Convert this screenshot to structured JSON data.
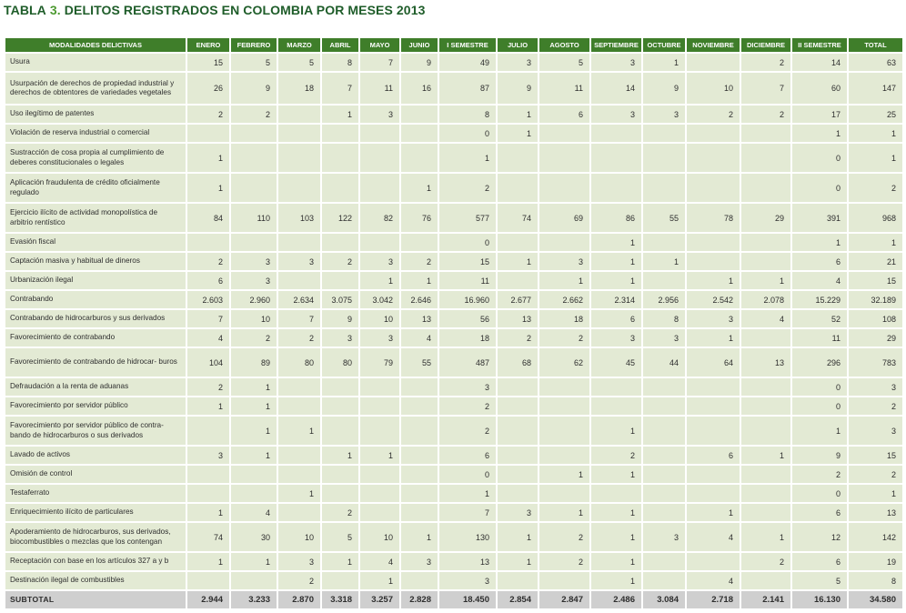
{
  "title": {
    "lead": "TABLA",
    "number": "3.",
    "text": "DELITOS REGISTRADOS EN COLOMBIA POR MESES 2013"
  },
  "columns": [
    "MODALIDADES DELICTIVAS",
    "ENERO",
    "FEBRERO",
    "MARZO",
    "ABRIL",
    "MAYO",
    "JUNIO",
    "I SEMESTRE",
    "JULIO",
    "AGOSTO",
    "SEPTIEMBRE",
    "OCTUBRE",
    "NOVIEMBRE",
    "DICIEMBRE",
    "II SEMESTRE",
    "TOTAL"
  ],
  "rows": [
    {
      "label": "Usura",
      "values": [
        "15",
        "5",
        "5",
        "8",
        "7",
        "9",
        "49",
        "3",
        "5",
        "3",
        "1",
        "",
        "2",
        "14",
        "63"
      ]
    },
    {
      "label": "Usurpación de derechos de propiedad industrial y derechos de obtentores de variedades vegetales",
      "size": "xtall",
      "values": [
        "26",
        "9",
        "18",
        "7",
        "11",
        "16",
        "87",
        "9",
        "11",
        "14",
        "9",
        "10",
        "7",
        "60",
        "147"
      ]
    },
    {
      "label": "Uso ilegítimo de patentes",
      "values": [
        "2",
        "2",
        "",
        "1",
        "3",
        "",
        "8",
        "1",
        "6",
        "3",
        "3",
        "2",
        "2",
        "17",
        "25"
      ]
    },
    {
      "label": "Violación de reserva industrial o comercial",
      "values": [
        "",
        "",
        "",
        "",
        "",
        "",
        "0",
        "1",
        "",
        "",
        "",
        "",
        "",
        "1",
        "1"
      ]
    },
    {
      "label": "Sustracción de cosa propia al cumplimiento de deberes constitucionales o legales",
      "size": "tall",
      "values": [
        "1",
        "",
        "",
        "",
        "",
        "",
        "1",
        "",
        "",
        "",
        "",
        "",
        "",
        "0",
        "1"
      ]
    },
    {
      "label": "Aplicación fraudulenta de crédito oficialmente regulado",
      "size": "tall",
      "values": [
        "1",
        "",
        "",
        "",
        "",
        "1",
        "2",
        "",
        "",
        "",
        "",
        "",
        "",
        "0",
        "2"
      ]
    },
    {
      "label": "Ejercicio ilícito de actividad monopolística de arbitrio rentístico",
      "size": "tall",
      "values": [
        "84",
        "110",
        "103",
        "122",
        "82",
        "76",
        "577",
        "74",
        "69",
        "86",
        "55",
        "78",
        "29",
        "391",
        "968"
      ]
    },
    {
      "label": "Evasión fiscal",
      "values": [
        "",
        "",
        "",
        "",
        "",
        "",
        "0",
        "",
        "",
        "1",
        "",
        "",
        "",
        "1",
        "1"
      ]
    },
    {
      "label": "Captación masiva y habitual de dineros",
      "values": [
        "2",
        "3",
        "3",
        "2",
        "3",
        "2",
        "15",
        "1",
        "3",
        "1",
        "1",
        "",
        "",
        "6",
        "21"
      ]
    },
    {
      "label": "Urbanización ilegal",
      "values": [
        "6",
        "3",
        "",
        "",
        "1",
        "1",
        "11",
        "",
        "1",
        "1",
        "",
        "1",
        "1",
        "4",
        "15"
      ]
    },
    {
      "label": "Contrabando",
      "values": [
        "2.603",
        "2.960",
        "2.634",
        "3.075",
        "3.042",
        "2.646",
        "16.960",
        "2.677",
        "2.662",
        "2.314",
        "2.956",
        "2.542",
        "2.078",
        "15.229",
        "32.189"
      ]
    },
    {
      "label": "Contrabando de hidrocarburos y sus derivados",
      "values": [
        "7",
        "10",
        "7",
        "9",
        "10",
        "13",
        "56",
        "13",
        "18",
        "6",
        "8",
        "3",
        "4",
        "52",
        "108"
      ]
    },
    {
      "label": "Favorecimiento de contrabando",
      "values": [
        "4",
        "2",
        "2",
        "3",
        "3",
        "4",
        "18",
        "2",
        "2",
        "3",
        "3",
        "1",
        "",
        "11",
        "29"
      ]
    },
    {
      "label": "Favorecimiento de contrabando de hidrocar- buros",
      "size": "tall",
      "values": [
        "104",
        "89",
        "80",
        "80",
        "79",
        "55",
        "487",
        "68",
        "62",
        "45",
        "44",
        "64",
        "13",
        "296",
        "783"
      ]
    },
    {
      "label": "Defraudación a la renta de aduanas",
      "values": [
        "2",
        "1",
        "",
        "",
        "",
        "",
        "3",
        "",
        "",
        "",
        "",
        "",
        "",
        "0",
        "3"
      ]
    },
    {
      "label": "Favorecimiento por servidor público",
      "values": [
        "1",
        "1",
        "",
        "",
        "",
        "",
        "2",
        "",
        "",
        "",
        "",
        "",
        "",
        "0",
        "2"
      ]
    },
    {
      "label": "Favorecimiento por servidor público de contra- bando de hidrocarburos o sus derivados",
      "size": "tall",
      "values": [
        "",
        "1",
        "1",
        "",
        "",
        "",
        "2",
        "",
        "",
        "1",
        "",
        "",
        "",
        "1",
        "3"
      ]
    },
    {
      "label": "Lavado de activos",
      "values": [
        "3",
        "1",
        "",
        "1",
        "1",
        "",
        "6",
        "",
        "",
        "2",
        "",
        "6",
        "1",
        "9",
        "15"
      ]
    },
    {
      "label": "Omisión de control",
      "values": [
        "",
        "",
        "",
        "",
        "",
        "",
        "0",
        "",
        "1",
        "1",
        "",
        "",
        "",
        "2",
        "2"
      ]
    },
    {
      "label": "Testaferrato",
      "values": [
        "",
        "",
        "1",
        "",
        "",
        "",
        "1",
        "",
        "",
        "",
        "",
        "",
        "",
        "0",
        "1"
      ]
    },
    {
      "label": "Enriquecimiento ilícito de particulares",
      "values": [
        "1",
        "4",
        "",
        "2",
        "",
        "",
        "7",
        "3",
        "1",
        "1",
        "",
        "1",
        "",
        "6",
        "13"
      ]
    },
    {
      "label": "Apoderamiento de hidrocarburos, sus derivados, biocombustibles o mezclas que los contengan",
      "size": "tall",
      "values": [
        "74",
        "30",
        "10",
        "5",
        "10",
        "1",
        "130",
        "1",
        "2",
        "1",
        "3",
        "4",
        "1",
        "12",
        "142"
      ]
    },
    {
      "label": "Receptación con base en los artículos 327 a y b",
      "values": [
        "1",
        "1",
        "3",
        "1",
        "4",
        "3",
        "13",
        "1",
        "2",
        "1",
        "",
        "",
        "2",
        "6",
        "19"
      ]
    },
    {
      "label": "Destinación ilegal de combustibles",
      "values": [
        "",
        "",
        "2",
        "",
        "1",
        "",
        "3",
        "",
        "",
        "1",
        "",
        "4",
        "",
        "5",
        "8"
      ]
    }
  ],
  "subtotal": {
    "label": "SUBTOTAL",
    "values": [
      "2.944",
      "3.233",
      "2.870",
      "3.318",
      "3.257",
      "2.828",
      "18.450",
      "2.854",
      "2.847",
      "2.486",
      "3.084",
      "2.718",
      "2.141",
      "16.130",
      "34.580"
    ]
  }
}
